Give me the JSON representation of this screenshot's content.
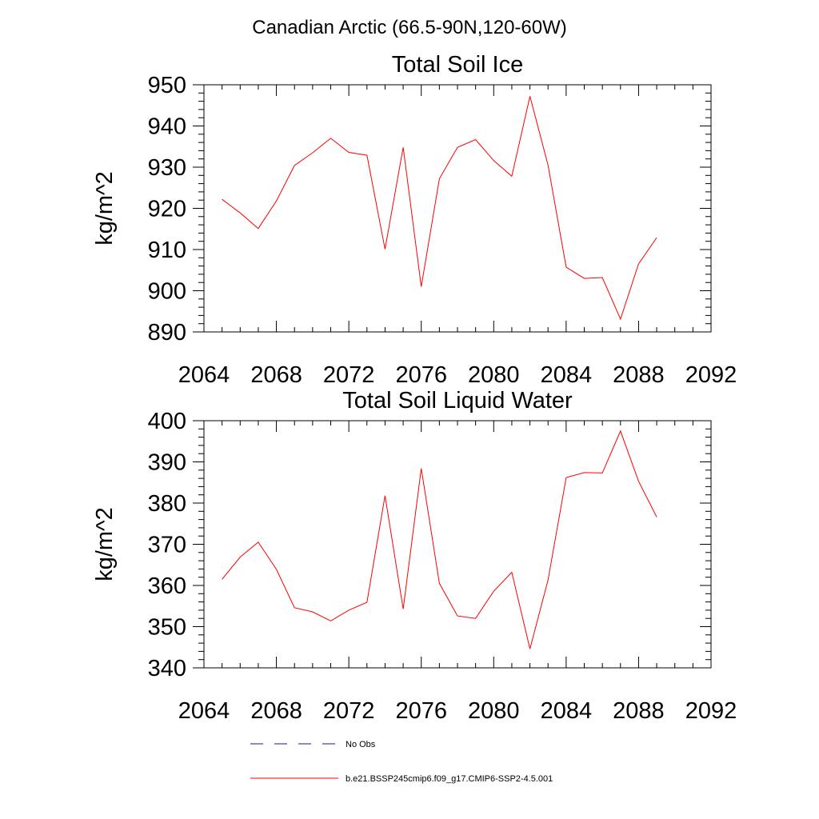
{
  "page_title": "Canadian Arctic (66.5-90N,120-60W)",
  "legend": {
    "entries": [
      {
        "label": "No Obs",
        "color": "#1a1a7a",
        "dash": "dashed"
      },
      {
        "label": "b.e21.BSSP245cmip6.f09_g17.CMIP6-SSP2-4.5.001",
        "color": "#ff0000",
        "dash": "solid"
      }
    ]
  },
  "chart_data": [
    {
      "type": "line",
      "title": "Total Soil Ice",
      "xlabel": "",
      "ylabel": "kg/m^2",
      "xlim": [
        2064,
        2092
      ],
      "ylim": [
        890,
        950
      ],
      "xticks": [
        2064,
        2068,
        2072,
        2076,
        2080,
        2084,
        2088,
        2092
      ],
      "yticks": [
        890,
        900,
        910,
        920,
        930,
        940,
        950
      ],
      "grid": false,
      "series": [
        {
          "color": "#ff0000",
          "x": [
            2065,
            2066,
            2067,
            2068,
            2069,
            2070,
            2071,
            2072,
            2073,
            2074,
            2075,
            2076,
            2077,
            2078,
            2079,
            2080,
            2081,
            2082,
            2083,
            2084,
            2085,
            2086,
            2087,
            2088,
            2089
          ],
          "y": [
            922.2,
            918.9,
            915.1,
            921.8,
            930.4,
            933.5,
            937.0,
            933.6,
            932.9,
            910.1,
            934.8,
            901.0,
            927.2,
            934.8,
            936.7,
            931.6,
            927.8,
            947.2,
            930.5,
            905.7,
            903.0,
            903.2,
            893.1,
            906.5,
            912.9
          ]
        }
      ]
    },
    {
      "type": "line",
      "title": "Total Soil Liquid Water",
      "xlabel": "",
      "ylabel": "kg/m^2",
      "xlim": [
        2064,
        2092
      ],
      "ylim": [
        340,
        400
      ],
      "xticks": [
        2064,
        2068,
        2072,
        2076,
        2080,
        2084,
        2088,
        2092
      ],
      "yticks": [
        340,
        350,
        360,
        370,
        380,
        390,
        400
      ],
      "grid": false,
      "series": [
        {
          "color": "#ff0000",
          "x": [
            2065,
            2066,
            2067,
            2068,
            2069,
            2070,
            2071,
            2072,
            2073,
            2074,
            2075,
            2076,
            2077,
            2078,
            2079,
            2080,
            2081,
            2082,
            2083,
            2084,
            2085,
            2086,
            2087,
            2088,
            2089
          ],
          "y": [
            361.5,
            366.9,
            370.5,
            363.9,
            354.6,
            353.6,
            351.4,
            354.0,
            355.9,
            381.8,
            354.3,
            388.4,
            360.5,
            352.6,
            352.0,
            358.6,
            363.2,
            344.6,
            361.3,
            386.2,
            387.4,
            387.3,
            397.5,
            385.3,
            376.6
          ]
        }
      ]
    }
  ]
}
